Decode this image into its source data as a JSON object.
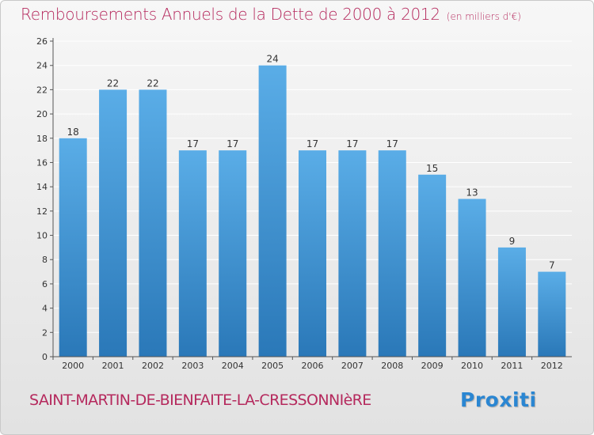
{
  "title": "Remboursements Annuels de la Dette de 2000 à 2012",
  "subtitle": "(en milliers d'€)",
  "commune": "SAINT-MARTIN-DE-BIENFAITE-LA-CRESSONNIèRE",
  "logo": "Proxiti",
  "colors": {
    "accent": "#b5295d",
    "bar_top": "#5aade7",
    "bar_bottom": "#2a78b8",
    "grid": "#ffffff",
    "axis": "#555555"
  },
  "chart_data": {
    "type": "bar",
    "title": "Remboursements Annuels de la Dette de 2000 à 2012",
    "subtitle": "(en milliers d'€)",
    "xlabel": "",
    "ylabel": "",
    "categories": [
      "2000",
      "2001",
      "2002",
      "2003",
      "2004",
      "2005",
      "2006",
      "2007",
      "2008",
      "2009",
      "2010",
      "2011",
      "2012"
    ],
    "values": [
      18,
      22,
      22,
      17,
      17,
      24,
      17,
      17,
      17,
      15,
      13,
      9,
      7
    ],
    "ylim": [
      0,
      26
    ],
    "yticks": [
      0,
      2,
      4,
      6,
      8,
      10,
      12,
      14,
      16,
      18,
      20,
      22,
      24,
      26
    ],
    "grid": true,
    "legend": "none"
  }
}
